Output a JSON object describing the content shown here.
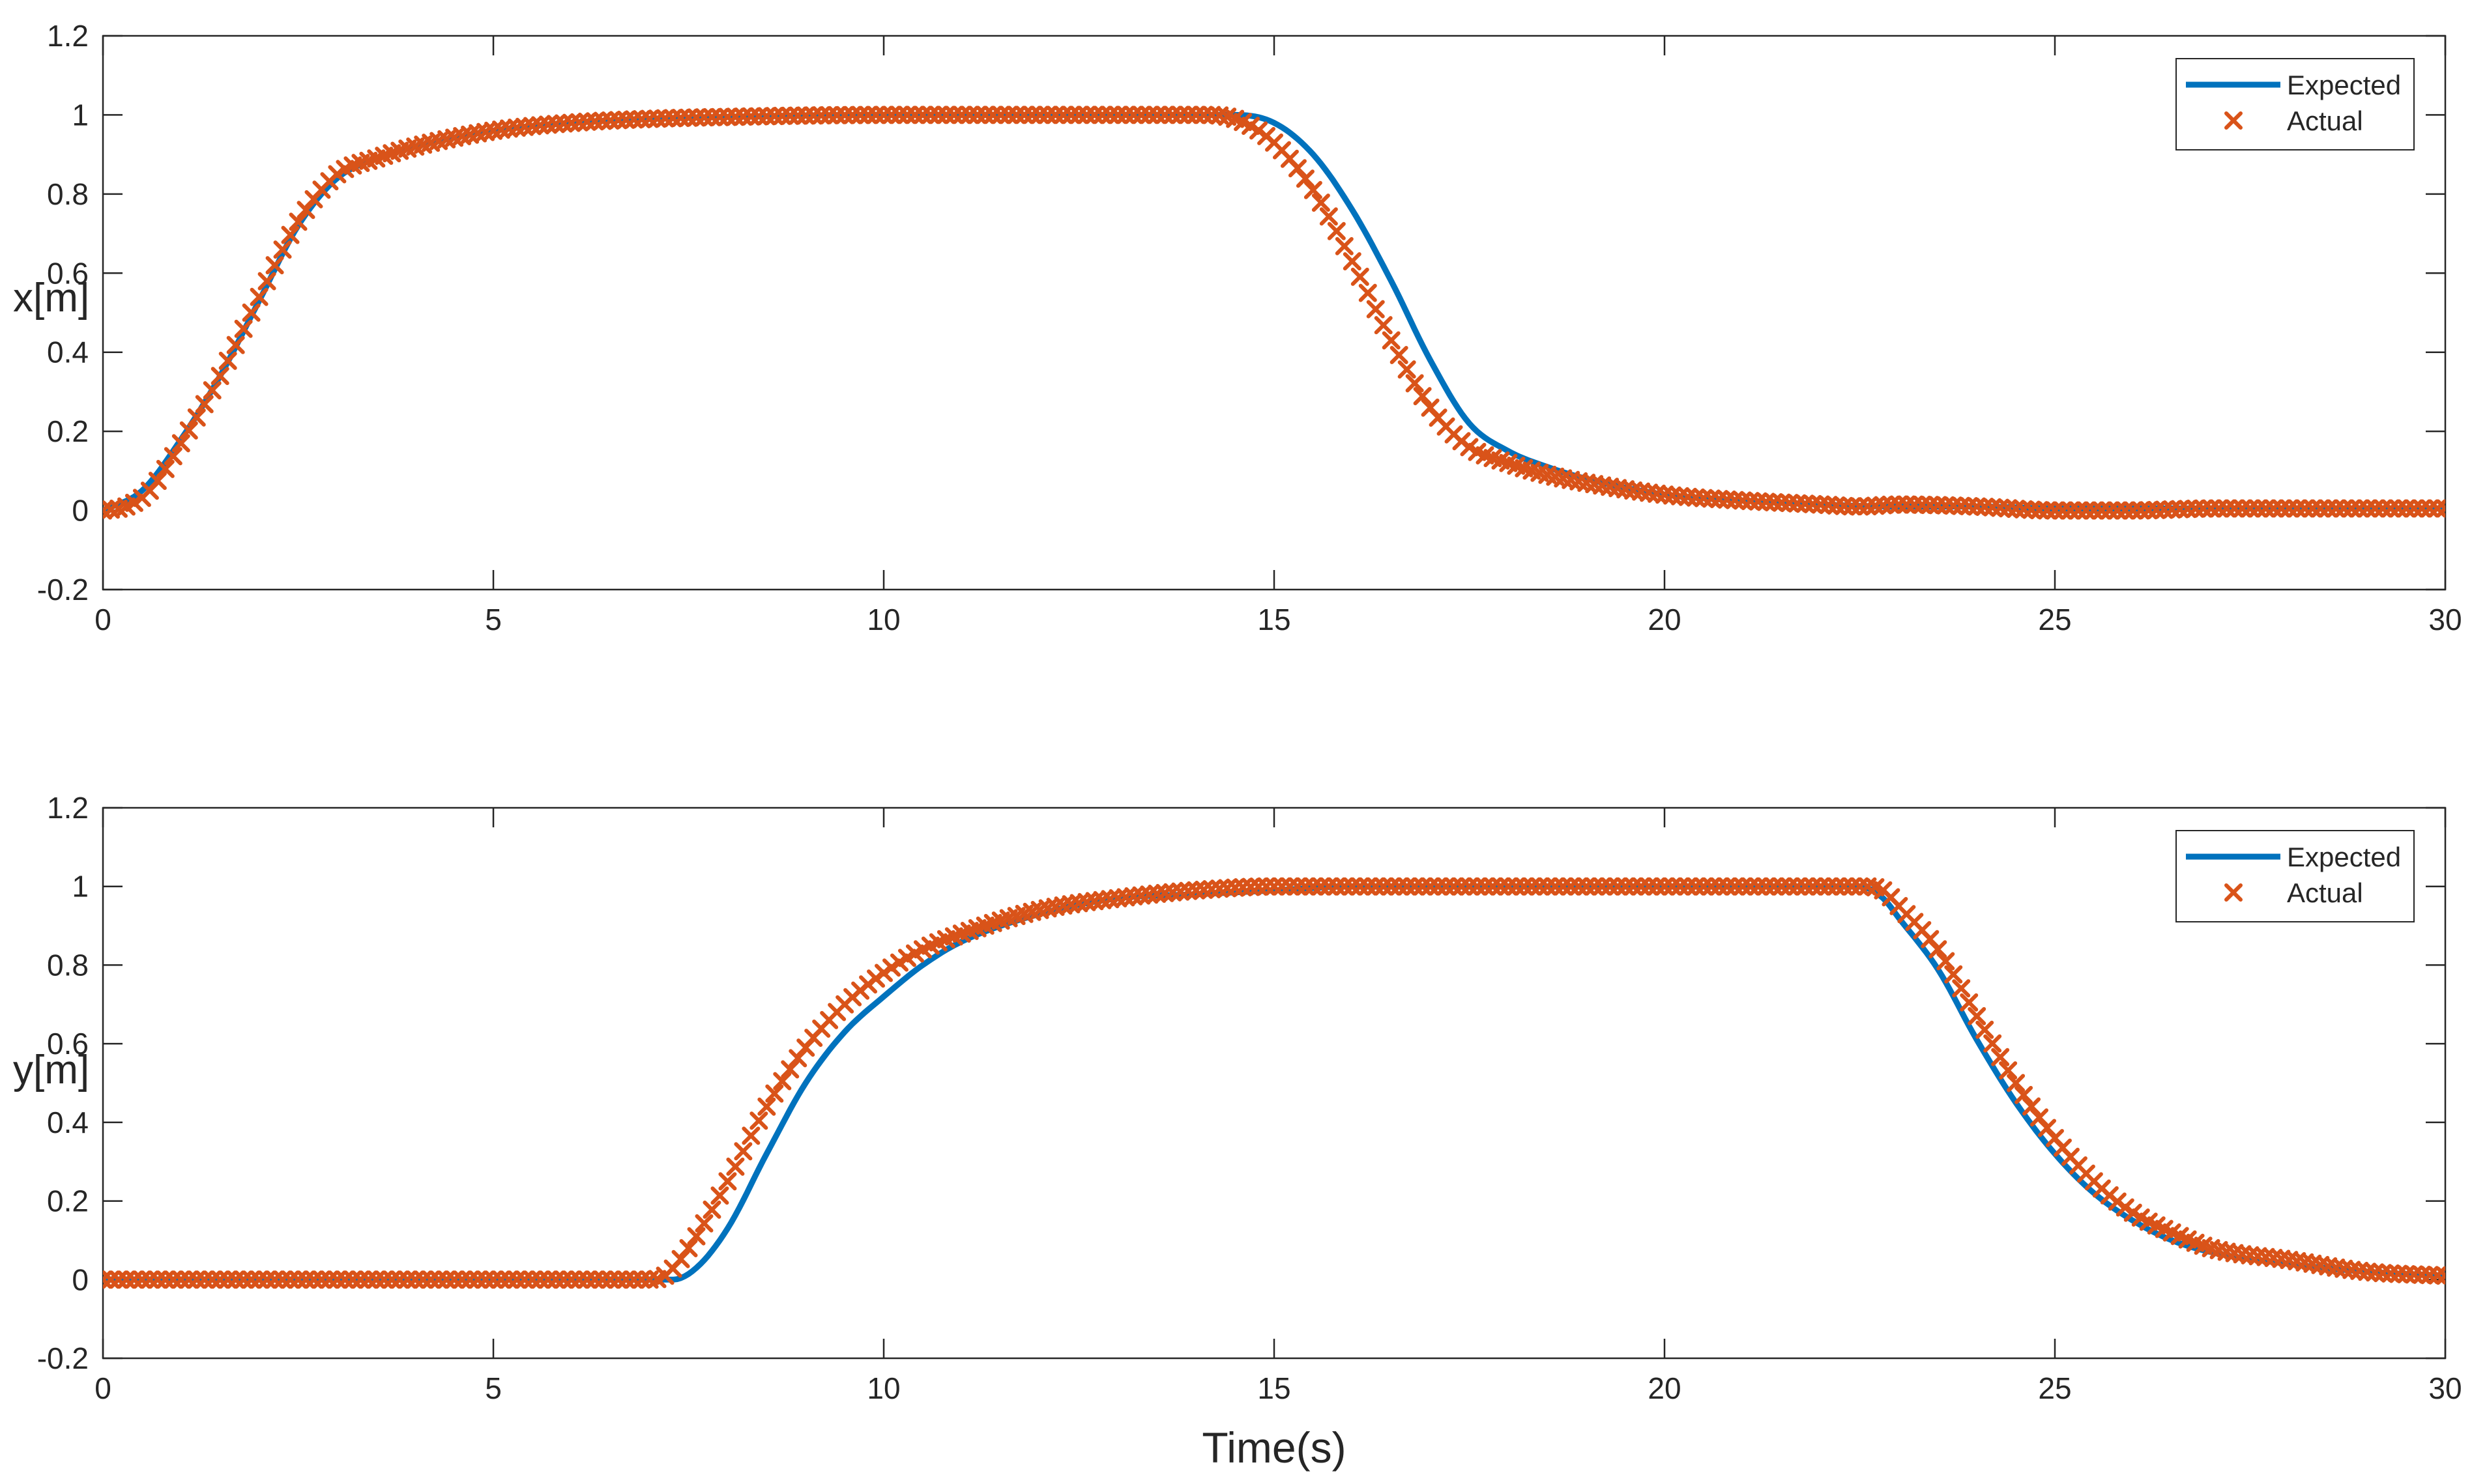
{
  "chart_data": [
    {
      "type": "line",
      "title": "",
      "xlabel": "",
      "ylabel": "x[m]",
      "xlim": [
        0,
        30
      ],
      "ylim": [
        -0.2,
        1.2
      ],
      "xticks": [
        0,
        5,
        10,
        15,
        20,
        25,
        30
      ],
      "yticks": [
        -0.2,
        0,
        0.2,
        0.4,
        0.6,
        0.8,
        1,
        1.2
      ],
      "xtick_labels": [
        "0",
        "5",
        "10",
        "15",
        "20",
        "25",
        "30"
      ],
      "ytick_labels": [
        "-0.2",
        "0",
        "0.2",
        "0.4",
        "0.6",
        "0.8",
        "1",
        "1.2"
      ],
      "grid": false,
      "legend_position": "top-right",
      "series": [
        {
          "name": "Expected",
          "style": "line",
          "color": "#0072BD",
          "x": [
            0,
            0.5,
            1,
            1.5,
            2,
            2.5,
            3,
            3.5,
            4,
            5,
            6,
            7,
            8,
            10,
            12,
            14,
            14.5,
            15,
            15.5,
            16,
            16.5,
            17,
            17.5,
            18,
            18.5,
            19,
            20,
            21,
            22,
            23,
            24,
            25,
            26,
            28,
            30
          ],
          "y": [
            0,
            0.05,
            0.18,
            0.34,
            0.53,
            0.72,
            0.84,
            0.89,
            0.92,
            0.96,
            0.98,
            0.99,
            0.995,
            1,
            1,
            1,
            1,
            0.98,
            0.9,
            0.76,
            0.58,
            0.38,
            0.22,
            0.15,
            0.11,
            0.08,
            0.04,
            0.025,
            0.015,
            0.01,
            0.01,
            0.005,
            0.005,
            0.005,
            0.005
          ]
        },
        {
          "name": "Actual",
          "style": "marker-x",
          "color": "#D95319",
          "x": [
            0,
            0.3,
            0.6,
            1,
            1.5,
            2,
            2.5,
            3,
            3.5,
            4,
            5,
            6,
            7,
            8,
            10,
            12,
            14,
            14.5,
            15,
            15.5,
            16,
            16.5,
            17,
            17.5,
            18,
            18.5,
            19,
            20,
            21,
            22,
            22.5,
            23,
            24,
            25,
            26,
            27,
            28,
            29,
            30
          ],
          "y": [
            0,
            0.01,
            0.05,
            0.17,
            0.34,
            0.54,
            0.73,
            0.85,
            0.89,
            0.92,
            0.96,
            0.98,
            0.99,
            0.995,
            1,
            1,
            1,
            0.99,
            0.93,
            0.81,
            0.63,
            0.43,
            0.26,
            0.16,
            0.12,
            0.09,
            0.07,
            0.04,
            0.025,
            0.015,
            0.01,
            0.015,
            0.01,
            0.0,
            0.0,
            0.005,
            0.005,
            0.005,
            0.005
          ]
        }
      ]
    },
    {
      "type": "line",
      "title": "",
      "xlabel": "Time(s)",
      "ylabel": "y[m]",
      "xlim": [
        0,
        30
      ],
      "ylim": [
        -0.2,
        1.2
      ],
      "xticks": [
        0,
        5,
        10,
        15,
        20,
        25,
        30
      ],
      "yticks": [
        -0.2,
        0,
        0.2,
        0.4,
        0.6,
        0.8,
        1,
        1.2
      ],
      "xtick_labels": [
        "0",
        "5",
        "10",
        "15",
        "20",
        "25",
        "30"
      ],
      "ytick_labels": [
        "-0.2",
        "0",
        "0.2",
        "0.4",
        "0.6",
        "0.8",
        "1",
        "1.2"
      ],
      "grid": false,
      "legend_position": "top-right",
      "series": [
        {
          "name": "Expected",
          "style": "line",
          "color": "#0072BD",
          "x": [
            0,
            2,
            4,
            6,
            7,
            7.3,
            7.6,
            8,
            8.5,
            9,
            9.5,
            10,
            10.5,
            11,
            12,
            13,
            14,
            15,
            16,
            18,
            20,
            22,
            22.5,
            22.8,
            23,
            23.5,
            24,
            24.5,
            25,
            25.5,
            26,
            26.5,
            27,
            28,
            29,
            30
          ],
          "y": [
            0,
            0,
            0,
            0,
            0,
            0,
            0.03,
            0.13,
            0.32,
            0.5,
            0.63,
            0.72,
            0.8,
            0.86,
            0.93,
            0.97,
            0.98,
            0.99,
            1,
            1,
            1,
            1,
            1,
            0.97,
            0.92,
            0.79,
            0.61,
            0.45,
            0.32,
            0.22,
            0.15,
            0.1,
            0.07,
            0.04,
            0.02,
            0.01
          ]
        },
        {
          "name": "Actual",
          "style": "marker-x",
          "color": "#D95319",
          "x": [
            0,
            1,
            2,
            3,
            4,
            5,
            6,
            7,
            7.2,
            7.5,
            8,
            8.5,
            9,
            9.5,
            10,
            10.5,
            11,
            12,
            13,
            14,
            15,
            16,
            18,
            20,
            22,
            22.5,
            22.8,
            23,
            23.5,
            24,
            24.5,
            25,
            25.5,
            26,
            26.5,
            27,
            28,
            29,
            30
          ],
          "y": [
            0,
            0,
            0,
            0,
            0,
            0,
            0,
            0,
            0.01,
            0.08,
            0.25,
            0.44,
            0.59,
            0.7,
            0.78,
            0.84,
            0.88,
            0.94,
            0.97,
            0.99,
            1,
            1,
            1,
            1,
            1,
            1,
            0.99,
            0.95,
            0.84,
            0.67,
            0.5,
            0.36,
            0.25,
            0.17,
            0.12,
            0.08,
            0.05,
            0.02,
            0.01
          ]
        }
      ]
    }
  ]
}
